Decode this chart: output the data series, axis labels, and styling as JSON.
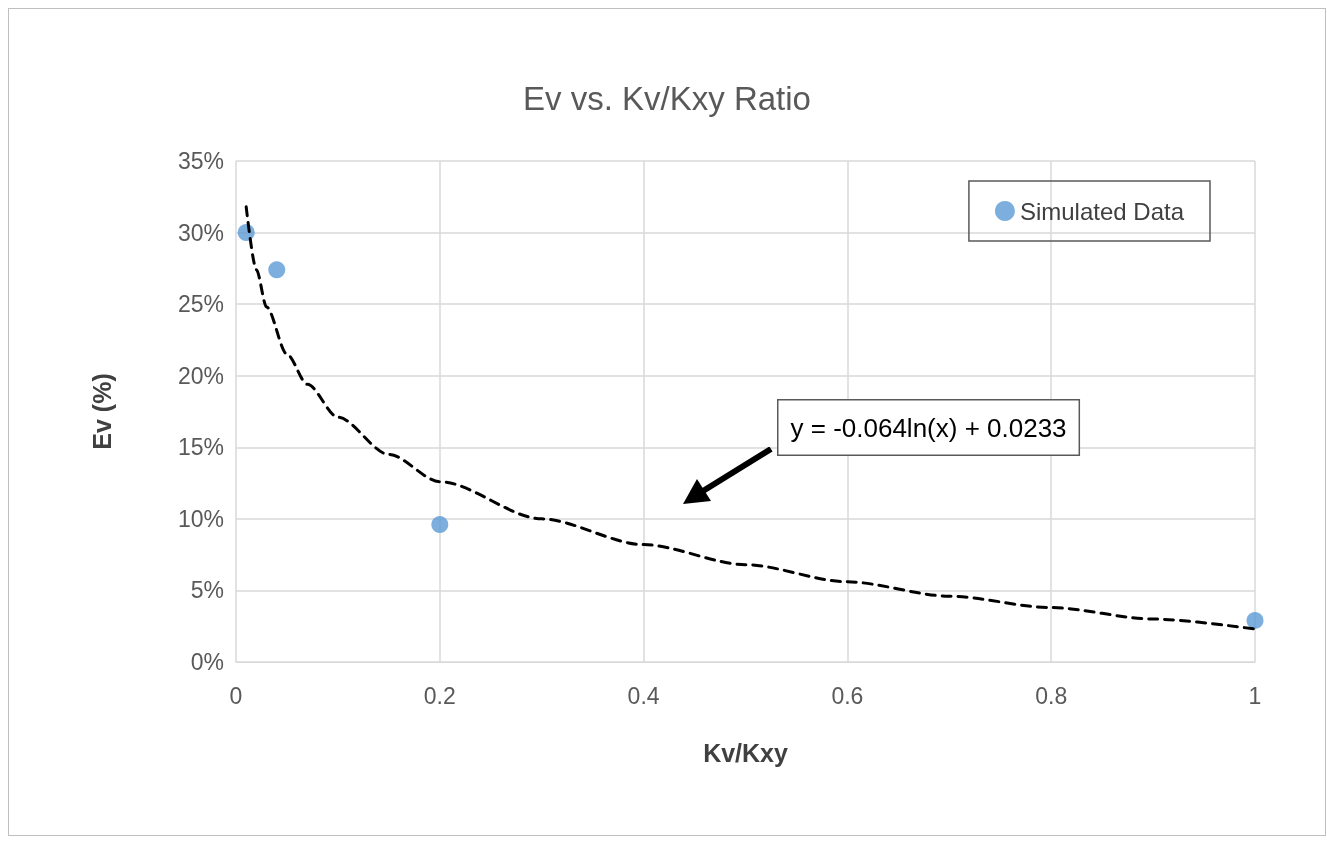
{
  "chart_data": {
    "type": "scatter",
    "title": "Ev vs. Kv/Kxy Ratio",
    "xlabel": "Kv/Kxy",
    "ylabel": "Ev (%)",
    "annotations": [
      "y = -0.064ln(x) + 0.0233"
    ],
    "series": [
      {
        "name": "Simulated Data",
        "color": "#5b9bd5",
        "marker": "circle",
        "x": [
          0.01,
          0.04,
          0.2,
          1
        ],
        "values": [
          30.0,
          27.4,
          9.6,
          2.9
        ]
      },
      {
        "type": "line",
        "color": "#000000",
        "marker": "none",
        "line_style": "dashed",
        "x": [
          0.01,
          0.02,
          0.03,
          0.05,
          0.07,
          0.1,
          0.15,
          0.2,
          0.3,
          0.4,
          0.5,
          0.6,
          0.7,
          0.8,
          0.9,
          1
        ],
        "values": [
          31.8,
          27.4,
          24.8,
          21.5,
          19.4,
          17.1,
          14.5,
          12.6,
          10.0,
          8.2,
          6.8,
          5.6,
          4.6,
          3.8,
          3.0,
          2.3
        ]
      }
    ],
    "xlim": [
      0,
      1
    ],
    "xticks": [
      0,
      0.2,
      0.4,
      0.6,
      0.8,
      1
    ],
    "ylim": [
      0,
      35
    ],
    "yticks": [
      {
        "value": 0,
        "label": "0%"
      },
      {
        "value": 5,
        "label": "5%"
      },
      {
        "value": 10,
        "label": "10%"
      },
      {
        "value": 15,
        "label": "15%"
      },
      {
        "value": 20,
        "label": "20%"
      },
      {
        "value": 25,
        "label": "25%"
      },
      {
        "value": 30,
        "label": "30%"
      },
      {
        "value": 35,
        "label": "35%"
      }
    ],
    "grid": true,
    "legend": "top right"
  }
}
